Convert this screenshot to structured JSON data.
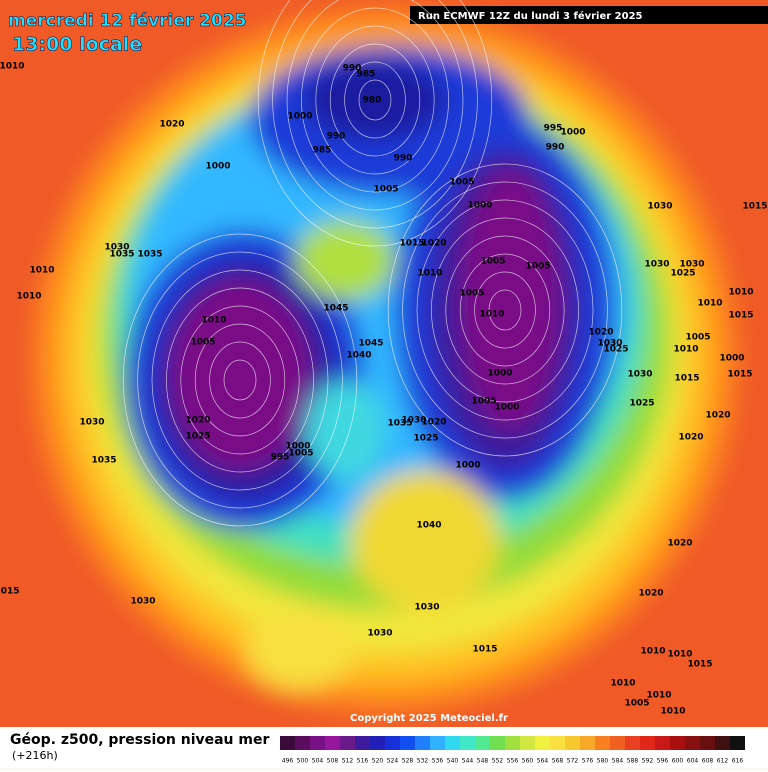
{
  "header": {
    "date": "mercredi 12 février 2025",
    "time": "13:00 locale",
    "run": "Run ECMWF 12Z du lundi 3 février 2025"
  },
  "footer": {
    "variable": "Géop. z500, pression niveau mer",
    "lead": "(+216h)",
    "copyright": "Copyright 2025 Meteociel.fr"
  },
  "colorbar": {
    "values": [
      496,
      500,
      504,
      508,
      512,
      516,
      520,
      524,
      528,
      532,
      536,
      540,
      544,
      548,
      552,
      556,
      560,
      564,
      568,
      572,
      576,
      580,
      584,
      588,
      592,
      596,
      600,
      604,
      608,
      612,
      616
    ],
    "colors": [
      "#3a0a3a",
      "#5a0c5e",
      "#7a1086",
      "#96169e",
      "#6a1a8a",
      "#3c1c9c",
      "#2020b8",
      "#1830d8",
      "#1050f0",
      "#2080ff",
      "#30b0ff",
      "#30d8f0",
      "#40e8c8",
      "#50e890",
      "#70e050",
      "#a0e040",
      "#d0e840",
      "#f0f040",
      "#f8e040",
      "#f8c830",
      "#f8a828",
      "#f88020",
      "#f06020",
      "#e84020",
      "#e02818",
      "#c81818",
      "#a81010",
      "#881010",
      "#681010",
      "#401010",
      "#101010"
    ]
  },
  "isobar_labels": [
    1010,
    1020,
    990,
    985,
    980,
    1000,
    990,
    985,
    1000,
    990,
    995,
    1000,
    990,
    1005,
    1005,
    1000,
    1015,
    1020,
    1010,
    1005,
    1005,
    1005,
    1010,
    1030,
    1015,
    1030,
    1025,
    1030,
    1010,
    1010,
    1015,
    1005,
    1020,
    1030,
    1025,
    1010,
    1000,
    1015,
    1030,
    1015,
    1025,
    1020,
    1020,
    1000,
    1005,
    1000,
    1000,
    1030,
    1035,
    1020,
    1025,
    1010,
    1005,
    1045,
    1045,
    1040,
    1020,
    1025,
    1035,
    1035,
    1030,
    1010,
    1010,
    1030,
    1035,
    1040,
    1030,
    1030,
    1030,
    1015,
    1020,
    1020,
    1010,
    1010,
    1015,
    1010,
    1010,
    1005,
    1010,
    1015,
    1000,
    1005,
    995
  ]
}
